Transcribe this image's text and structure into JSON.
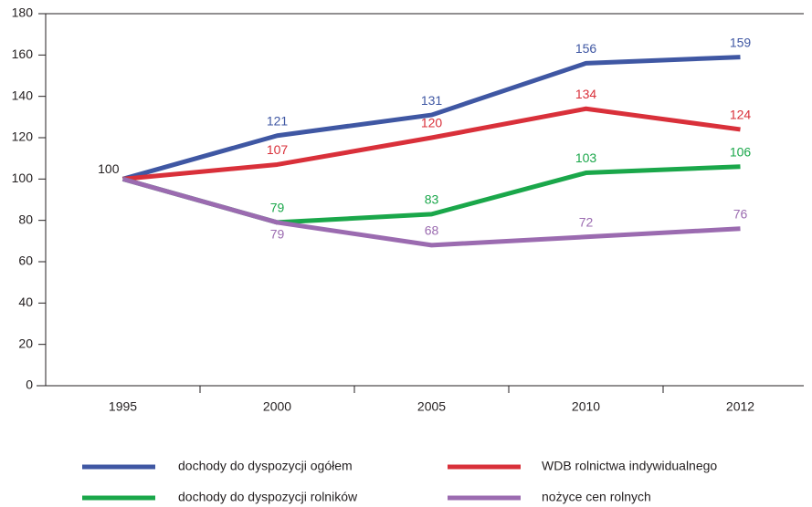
{
  "chart_data": {
    "type": "line",
    "categories": [
      "1995",
      "2000",
      "2005",
      "2010",
      "2012"
    ],
    "series": [
      {
        "name": "dochody do dyspozycji ogółem",
        "color": "#3f57a3",
        "values": [
          100,
          121,
          131,
          156,
          159
        ]
      },
      {
        "name": "WDB rolnictwa indywidualnego",
        "color": "#d9303a",
        "values": [
          100,
          107,
          120,
          134,
          124
        ]
      },
      {
        "name": "dochody do dyspozycji rolników",
        "color": "#1aa74a",
        "values": [
          100,
          79,
          83,
          103,
          106
        ]
      },
      {
        "name": "nożyce cen rolnych",
        "color": "#9b6bb0",
        "values": [
          100,
          79,
          68,
          72,
          76
        ]
      }
    ],
    "ylim": [
      0,
      180
    ],
    "yticks": [
      0,
      20,
      40,
      60,
      80,
      100,
      120,
      140,
      160,
      180
    ]
  }
}
